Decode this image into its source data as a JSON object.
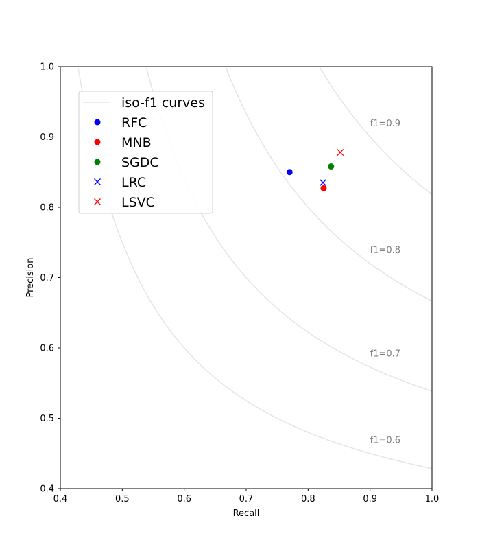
{
  "chart_data": {
    "type": "scatter",
    "xlabel": "Recall",
    "ylabel": "Precision",
    "xlim": [
      0.4,
      1.0
    ],
    "ylim": [
      0.4,
      1.0
    ],
    "x_ticks": [
      "0.4",
      "0.5",
      "0.6",
      "0.7",
      "0.8",
      "0.9",
      "1.0"
    ],
    "y_ticks": [
      "0.4",
      "0.5",
      "0.6",
      "0.7",
      "0.8",
      "0.9",
      "1.0"
    ],
    "grid": false,
    "legend_position": "upper-left",
    "iso_f1": {
      "legend_label": "iso-f1 curves",
      "color": "#e6e6e6",
      "curves": [
        {
          "f1": 0.6,
          "label": "f1=0.6"
        },
        {
          "f1": 0.7,
          "label": "f1=0.7"
        },
        {
          "f1": 0.8,
          "label": "f1=0.8"
        },
        {
          "f1": 0.9,
          "label": "f1=0.9"
        }
      ]
    },
    "series": [
      {
        "name": "RFC",
        "marker": "circle",
        "color": "#0000ff",
        "x": 0.77,
        "y": 0.85
      },
      {
        "name": "MNB",
        "marker": "circle",
        "color": "#ff0000",
        "x": 0.825,
        "y": 0.827
      },
      {
        "name": "SGDC",
        "marker": "circle",
        "color": "#008000",
        "x": 0.837,
        "y": 0.858
      },
      {
        "name": "LRC",
        "marker": "x",
        "color": "#0000ff",
        "x": 0.824,
        "y": 0.835
      },
      {
        "name": "LSVC",
        "marker": "x",
        "color": "#ff0000",
        "x": 0.852,
        "y": 0.878
      }
    ]
  }
}
